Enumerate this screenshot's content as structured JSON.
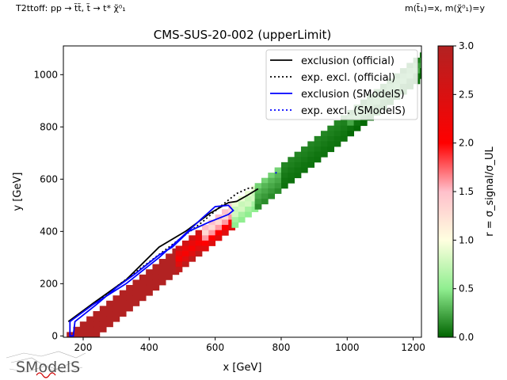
{
  "header": {
    "left": "T2ttoff: pp → t̃t̃, t̃ → t* χ̃⁰₁",
    "right": "m(t̃₁)=x, m(χ̃⁰₁)=y"
  },
  "logo": {
    "text": "SModelS"
  },
  "chart_data": {
    "type": "heatmap",
    "title": "CMS-SUS-20-002 (upperLimit)",
    "xlabel": "x [GeV]",
    "ylabel": "y [GeV]",
    "xlim": [
      140,
      1225
    ],
    "ylim": [
      -5,
      1110
    ],
    "xticks": [
      200,
      400,
      600,
      800,
      1000,
      1200
    ],
    "yticks": [
      0,
      200,
      400,
      600,
      800,
      1000
    ],
    "colorbar": {
      "label": "r = σ_signal/σ_UL",
      "range": [
        0,
        3
      ],
      "ticks": [
        0.0,
        0.5,
        1.0,
        1.5,
        2.0,
        2.5,
        3.0
      ],
      "tick_labels": [
        "0.0",
        "0.5",
        "1.0",
        "1.5",
        "2.0",
        "2.5",
        "3.0"
      ]
    },
    "legend": {
      "placement": "top-right",
      "entries": [
        "exclusion (official)",
        "exp. excl. (official)",
        "exclusion (SModelS)",
        "exp. excl. (SModelS)"
      ]
    },
    "colors": {
      "official": "#000000",
      "smodels": "#0000ff"
    },
    "cells": {
      "diagonal_offsets_GeV": [
        0,
        20,
        40,
        60,
        80
      ],
      "segments": [
        {
          "mstop_range": [
            150,
            480
          ],
          "r_values": [
            3.0,
            3.0,
            3.0,
            3.0,
            3.0
          ]
        },
        {
          "mstop_range": [
            480,
            560
          ],
          "r_values": [
            2.6,
            2.3,
            2.1,
            2.4,
            2.8
          ]
        },
        {
          "mstop_range": [
            560,
            650
          ],
          "r_values": [
            1.5,
            1.3,
            1.6,
            2.0,
            2.4
          ]
        },
        {
          "mstop_range": [
            650,
            720
          ],
          "r_values": [
            0.9,
            0.75,
            0.8,
            0.6,
            0.5
          ]
        },
        {
          "mstop_range": [
            720,
            800
          ],
          "r_values": [
            0.4,
            0.3,
            0.25,
            0.2,
            0.15
          ]
        },
        {
          "mstop_range": [
            800,
            1000
          ],
          "r_values": [
            0.12,
            0.1,
            0.08,
            0.06,
            0.05
          ]
        },
        {
          "mstop_range": [
            1000,
            1225
          ],
          "r_values": [
            0.08,
            0.2,
            0.25,
            0.05,
            0.02
          ]
        }
      ]
    },
    "series": [
      {
        "name": "exclusion (official)",
        "points": [
          [
            155,
            55
          ],
          [
            230,
            125
          ],
          [
            330,
            215
          ],
          [
            430,
            340
          ],
          [
            510,
            400
          ],
          [
            585,
            470
          ],
          [
            640,
            510
          ],
          [
            665,
            515
          ],
          [
            700,
            540
          ],
          [
            730,
            563
          ]
        ]
      },
      {
        "name": "exp. excl. (official)",
        "points": [
          [
            160,
            58
          ],
          [
            250,
            140
          ],
          [
            360,
            245
          ],
          [
            460,
            340
          ],
          [
            560,
            435
          ],
          [
            620,
            500
          ],
          [
            665,
            545
          ],
          [
            700,
            565
          ],
          [
            720,
            567
          ]
        ]
      },
      {
        "name": "exclusion (SModelS)",
        "points": [
          [
            160,
            0
          ],
          [
            160,
            55
          ],
          [
            230,
            120
          ],
          [
            330,
            200
          ],
          [
            430,
            300
          ],
          [
            500,
            380
          ],
          [
            560,
            450
          ],
          [
            600,
            495
          ],
          [
            640,
            500
          ],
          [
            655,
            480
          ],
          [
            640,
            465
          ],
          [
            580,
            435
          ],
          [
            520,
            400
          ],
          [
            470,
            340
          ],
          [
            430,
            310
          ],
          [
            360,
            240
          ],
          [
            300,
            185
          ],
          [
            240,
            120
          ],
          [
            175,
            55
          ],
          [
            170,
            0
          ]
        ]
      },
      {
        "name": "exp. excl. (SModelS)",
        "points": [
          [
            783,
            622
          ],
          [
            786,
            628
          ]
        ]
      }
    ]
  }
}
